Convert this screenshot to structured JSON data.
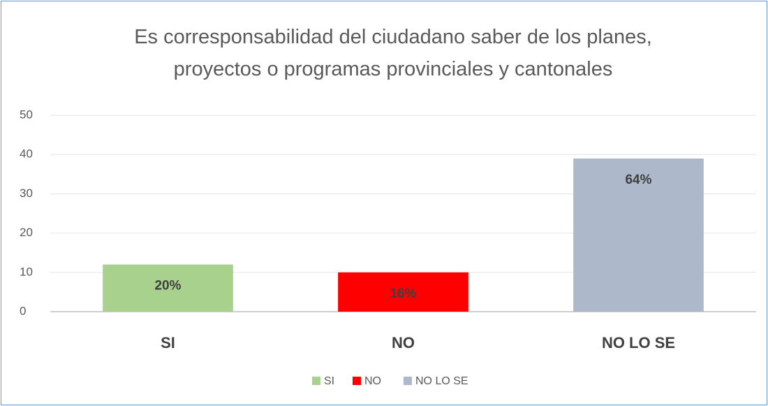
{
  "chart_data": {
    "type": "bar",
    "title": "Es corresponsabilidad del ciudadano saber de los planes, proyectos o programas provinciales y cantonales",
    "categories": [
      "SI",
      "NO",
      "NO LO SE"
    ],
    "values": [
      12,
      10,
      39
    ],
    "value_labels": [
      "20%",
      "16%",
      "64%"
    ],
    "colors": [
      "#a9d18e",
      "#ff0000",
      "#adb9ca"
    ],
    "ylim": [
      0,
      50
    ],
    "yticks": [
      0,
      10,
      20,
      30,
      40,
      50
    ],
    "grid": true,
    "legend": "bottom"
  }
}
